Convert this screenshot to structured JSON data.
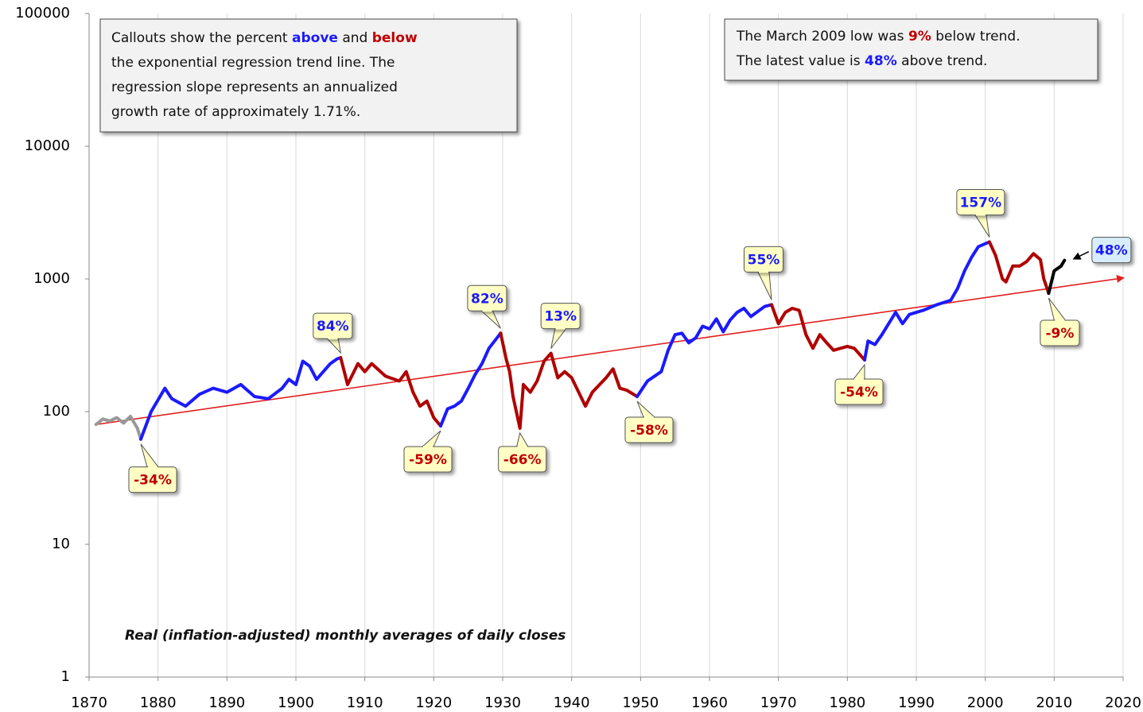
{
  "chart_data": {
    "type": "line",
    "yscale": "log",
    "ylim": [
      1,
      100000
    ],
    "yticks": [
      1,
      10,
      100,
      1000,
      10000,
      100000
    ],
    "xlim": [
      1870,
      2020
    ],
    "xticks": [
      1870,
      1880,
      1890,
      1900,
      1910,
      1920,
      1930,
      1940,
      1950,
      1960,
      1970,
      1980,
      1990,
      2000,
      2010,
      2020
    ],
    "grid": true,
    "footnote": "Real (inflation-adjusted) monthly averages of daily closes",
    "series": [
      {
        "color": "#999999",
        "x": [
          1871,
          1872,
          1873,
          1874,
          1875,
          1876,
          1877,
          1877.5
        ],
        "values": [
          80,
          88,
          85,
          90,
          82,
          92,
          75,
          62
        ]
      },
      {
        "color": "#1a1aff",
        "x": [
          1877.5,
          1879,
          1881,
          1882,
          1884,
          1886,
          1888,
          1890,
          1892,
          1894,
          1896,
          1898,
          1899,
          1900,
          1901,
          1902,
          1903,
          1905,
          1906,
          1906.5
        ],
        "values": [
          62,
          100,
          150,
          125,
          110,
          135,
          150,
          140,
          160,
          130,
          125,
          150,
          175,
          160,
          240,
          220,
          175,
          230,
          250,
          255
        ]
      },
      {
        "color": "#b00000",
        "x": [
          1906.5,
          1907.5,
          1909,
          1910,
          1911,
          1913,
          1915,
          1916,
          1917,
          1918,
          1919,
          1920,
          1921
        ],
        "values": [
          255,
          160,
          230,
          200,
          230,
          185,
          170,
          200,
          140,
          110,
          120,
          90,
          78
        ]
      },
      {
        "color": "#1a1aff",
        "x": [
          1921,
          1922,
          1923,
          1924,
          1925,
          1926,
          1927,
          1928,
          1929.7
        ],
        "values": [
          78,
          105,
          110,
          120,
          150,
          190,
          230,
          300,
          390
        ]
      },
      {
        "color": "#b00000",
        "x": [
          1929.7,
          1930.5,
          1931,
          1931.5,
          1932.5,
          1933,
          1934,
          1935,
          1936,
          1937,
          1938,
          1939,
          1940,
          1942,
          1943,
          1945,
          1946,
          1947,
          1948,
          1949.5
        ],
        "values": [
          390,
          250,
          200,
          130,
          75,
          160,
          140,
          170,
          240,
          275,
          180,
          200,
          180,
          110,
          140,
          180,
          210,
          150,
          145,
          130
        ]
      },
      {
        "color": "#1a1aff",
        "x": [
          1949.5,
          1951,
          1953,
          1954,
          1955,
          1956,
          1957,
          1958,
          1959,
          1960,
          1961,
          1962,
          1963,
          1964,
          1965,
          1966,
          1968,
          1969
        ],
        "values": [
          130,
          170,
          200,
          290,
          380,
          390,
          330,
          360,
          440,
          420,
          500,
          400,
          490,
          560,
          600,
          520,
          620,
          640
        ]
      },
      {
        "color": "#b00000",
        "x": [
          1969,
          1970,
          1971,
          1972,
          1973,
          1974,
          1975,
          1976,
          1977,
          1978,
          1979,
          1980,
          1981,
          1982.5
        ],
        "values": [
          640,
          460,
          560,
          600,
          580,
          380,
          300,
          380,
          330,
          290,
          300,
          310,
          300,
          245
        ]
      },
      {
        "color": "#1a1aff",
        "x": [
          1982.5,
          1983,
          1984,
          1985,
          1987,
          1988,
          1989,
          1990,
          1991,
          1993,
          1995,
          1996,
          1997,
          1998,
          1999,
          2000.6
        ],
        "values": [
          245,
          340,
          320,
          380,
          560,
          460,
          540,
          560,
          580,
          640,
          690,
          850,
          1150,
          1450,
          1750,
          1900
        ]
      },
      {
        "color": "#b00000",
        "x": [
          2000.6,
          2001.5,
          2002.5,
          2003,
          2004,
          2005,
          2006,
          2007,
          2008,
          2008.5,
          2009.2
        ],
        "values": [
          1900,
          1500,
          1000,
          950,
          1250,
          1250,
          1350,
          1550,
          1400,
          1000,
          780
        ]
      },
      {
        "color": "#000000",
        "x": [
          2009.2,
          2010,
          2011,
          2011.5
        ],
        "values": [
          780,
          1150,
          1250,
          1380
        ]
      }
    ],
    "trend": {
      "color": "#e02020",
      "x": [
        1871,
        2020
      ],
      "values": [
        80,
        1017
      ]
    },
    "callouts": [
      {
        "label": "-34%",
        "color": "#c00000",
        "x": 1877.5,
        "value": 62
      },
      {
        "label": "84%",
        "color": "#1a1aff",
        "x": 1906.5,
        "value": 255
      },
      {
        "label": "-59%",
        "color": "#c00000",
        "x": 1921,
        "value": 78
      },
      {
        "label": "82%",
        "color": "#1a1aff",
        "x": 1929.7,
        "value": 390
      },
      {
        "label": "-66%",
        "color": "#c00000",
        "x": 1932.5,
        "value": 75
      },
      {
        "label": "13%",
        "color": "#1a1aff",
        "x": 1937,
        "value": 275
      },
      {
        "label": "-58%",
        "color": "#c00000",
        "x": 1949.5,
        "value": 130
      },
      {
        "label": "55%",
        "color": "#1a1aff",
        "x": 1969,
        "value": 640
      },
      {
        "label": "-54%",
        "color": "#c00000",
        "x": 1982.5,
        "value": 245
      },
      {
        "label": "157%",
        "color": "#1a1aff",
        "x": 2000.6,
        "value": 1900
      },
      {
        "label": "-9%",
        "color": "#c00000",
        "x": 2009.2,
        "value": 780
      },
      {
        "label": "48%",
        "color": "#1a1aff",
        "x": 2011.5,
        "value": 1380
      }
    ],
    "notes": [
      {
        "lines": [
          [
            {
              "text": "Callouts show the percent "
            },
            {
              "text": "above",
              "color": "#1a1aff"
            },
            {
              "text": " and "
            },
            {
              "text": "below",
              "color": "#c00000"
            }
          ],
          [
            {
              "text": "the exponential regression trend line. The"
            }
          ],
          [
            {
              "text": "regression slope represents an annualized"
            }
          ],
          [
            {
              "text": "growth rate of approximately 1.71%."
            }
          ]
        ]
      },
      {
        "lines": [
          [
            {
              "text": "The March 2009 low was "
            },
            {
              "text": "9%",
              "color": "#c00000"
            },
            {
              "text": " below trend."
            }
          ],
          [
            {
              "text": "The latest value is "
            },
            {
              "text": "48%",
              "color": "#1a1aff"
            },
            {
              "text": " above trend."
            }
          ]
        ]
      }
    ]
  }
}
